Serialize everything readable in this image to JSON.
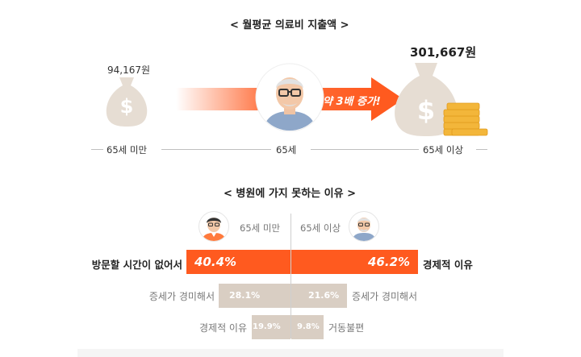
{
  "top_section": {
    "title": "< 월평균 의료비 지출액 >",
    "under65_amount": "94,167원",
    "over65_amount": "301,667원",
    "arrow_label": "약 3배 증가!",
    "timeline": {
      "left": "65세 미만",
      "center": "65세",
      "right": "65세 이상"
    }
  },
  "bottom_section": {
    "title": "< 병원에 가지 못하는 이유 >",
    "left_group_label": "65세 미만",
    "right_group_label": "65세 이상",
    "rows": [
      {
        "left_reason": "방문할 시간이 없어서",
        "left_value": "40.4%",
        "left_fraction": 0.404,
        "right_value": "46.2%",
        "right_fraction": 0.462,
        "right_reason": "경제적 이유"
      },
      {
        "left_reason": "증세가 경미해서",
        "left_value": "28.1%",
        "left_fraction": 0.281,
        "right_value": "21.6%",
        "right_fraction": 0.216,
        "right_reason": "증세가 경미해서"
      },
      {
        "left_reason": "경제적 이유",
        "left_value": "19.9%",
        "left_fraction": 0.199,
        "right_value": "9.8%",
        "right_fraction": 0.098,
        "right_reason": "거동불편"
      }
    ]
  },
  "colors": {
    "accent": "#ff5a1f",
    "bag": "#e8dfd6",
    "gray_bar": "#d9cec3",
    "gold": "#f3b63a"
  }
}
